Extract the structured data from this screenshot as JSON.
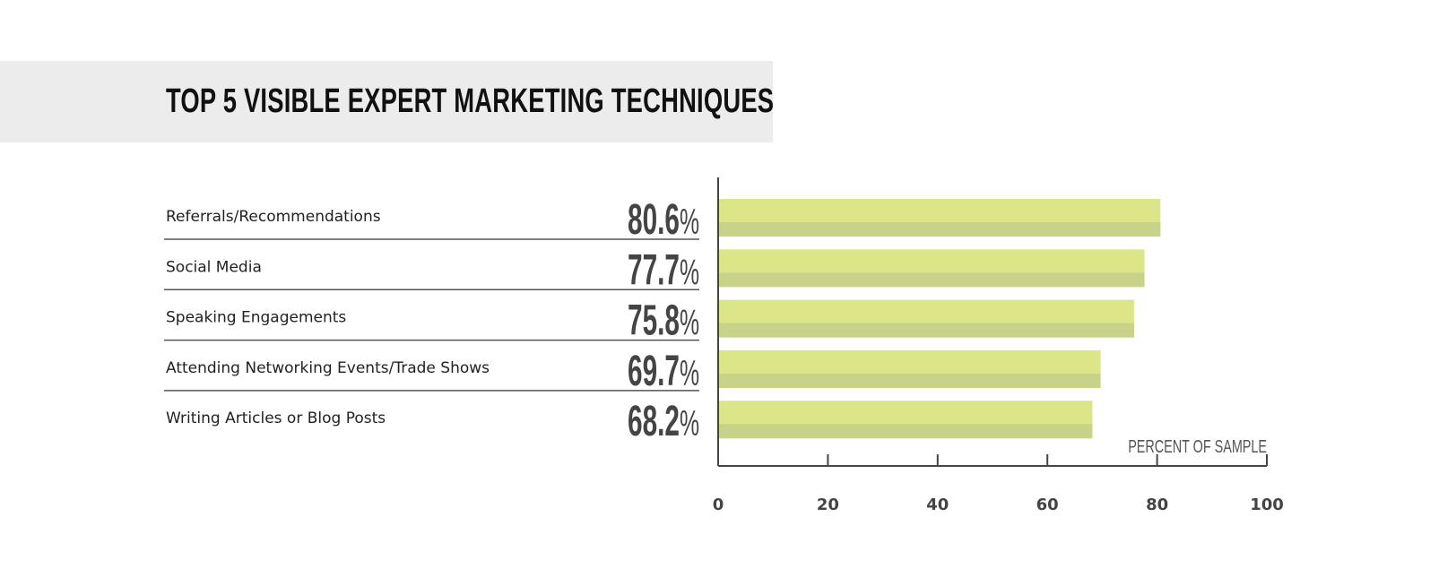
{
  "chart_data": {
    "type": "bar",
    "orientation": "horizontal",
    "title": "TOP 5 VISIBLE EXPERT MARKETING TECHNIQUES",
    "categories": [
      "Referrals/Recommendations",
      "Social Media",
      "Speaking Engagements",
      "Attending Networking Events/Trade Shows",
      "Writing Articles or Blog Posts"
    ],
    "values": [
      80.6,
      77.7,
      75.8,
      69.7,
      68.2
    ],
    "value_labels": [
      "80.6",
      "77.7",
      "75.8",
      "69.7",
      "68.2"
    ],
    "value_suffix": "%",
    "xlabel": "PERCENT OF SAMPLE",
    "ylabel": "",
    "xlim": [
      0,
      100
    ],
    "xticks": [
      0,
      20,
      40,
      60,
      80,
      100
    ],
    "grid": false,
    "colors": {
      "bar_light": "#dce688",
      "bar_dark": "#c8d288",
      "axis": "#444444",
      "title_band": "#ececec"
    }
  }
}
